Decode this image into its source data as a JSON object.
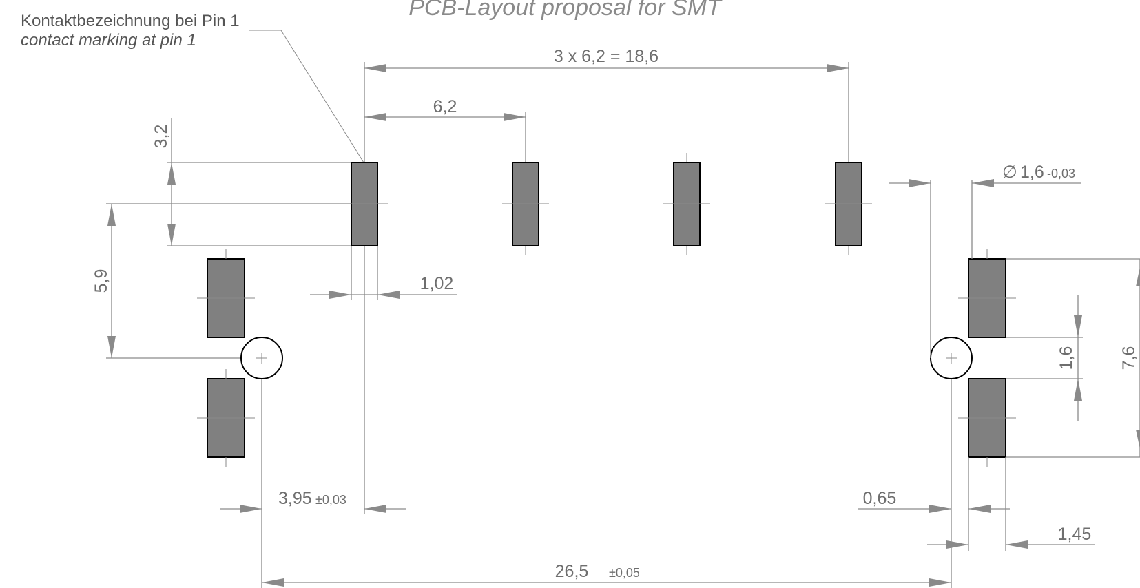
{
  "title": "PCB-Layout proposal for SMT",
  "pin1_label": {
    "line1": "Kontaktbezeichnung bei Pin 1",
    "line2": "contact marking at pin 1"
  },
  "dimensions": {
    "total_pitch": "3  x  6,2  =  18,6",
    "pitch": "6,2",
    "pad_height": "3,2",
    "pad_width": "1,02",
    "row_offset": "5,9",
    "hole_diameter_symbol": "∅",
    "hole_diameter": "1,6",
    "hole_diameter_tol": "-0,03",
    "side_pad_gap": "1,6",
    "side_pad_span": "7,6",
    "hole_to_pin1": "3,95",
    "hole_to_pin1_tol": "±0,03",
    "hole_to_side_pad": "0,65",
    "side_pad_width": "1,45",
    "hole_spacing": "26,5",
    "hole_spacing_tol": "±0,05"
  },
  "colors": {
    "pad_fill": "#808080",
    "outline": "#000000",
    "dimension_line": "#8a8a8a"
  }
}
